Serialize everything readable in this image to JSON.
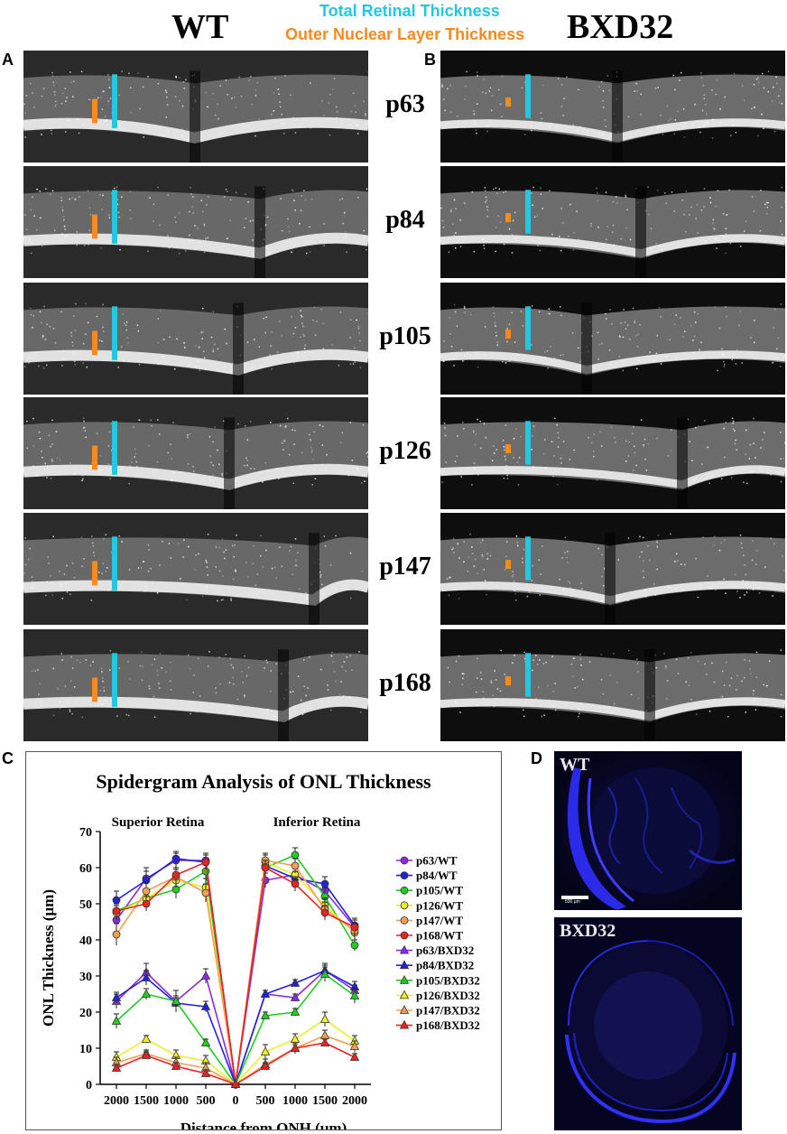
{
  "header": {
    "wt_title": "WT",
    "bxd_title": "BXD32",
    "legend_total": "Total Retinal Thickness",
    "legend_onl": "Outer Nuclear Layer Thickness",
    "total_color": "#22c8e0",
    "onl_color": "#f58a1f"
  },
  "panels": {
    "a": "A",
    "b": "B",
    "c": "C",
    "d": "D"
  },
  "ages": [
    "p63",
    "p84",
    "p105",
    "p126",
    "p147",
    "p168"
  ],
  "ihc": {
    "wt_label": "WT",
    "bxd_label": "BXD32",
    "scale_bar": "500 μm"
  },
  "chart_data": {
    "type": "line",
    "title": "Spidergram Analysis of ONL Thickness",
    "xlabel": "Distance from ONH (μm)",
    "ylabel": "ONL Thickness (μm)",
    "region_left": "Superior Retina",
    "region_right": "Inferior Retina",
    "x": [
      "2000",
      "1500",
      "1000",
      "500",
      "0",
      "500",
      "1000",
      "1500",
      "2000"
    ],
    "ylim": [
      0,
      70
    ],
    "yticks": [
      0,
      10,
      20,
      30,
      40,
      50,
      60,
      70
    ],
    "legend_position": "right",
    "series": [
      {
        "name": "p63/WT",
        "marker": "circle",
        "color": "#8a2be2",
        "values": [
          45.5,
          57,
          62,
          62,
          0,
          56.5,
          58,
          53.5,
          43.5
        ],
        "err": [
          2.5,
          3,
          2,
          2,
          0,
          2,
          2,
          2.5,
          2
        ]
      },
      {
        "name": "p84/WT",
        "marker": "circle",
        "color": "#2222dd",
        "values": [
          51,
          56.5,
          62.5,
          61.5,
          0,
          60.5,
          57,
          55.5,
          44
        ],
        "err": [
          2.5,
          2.5,
          2,
          2,
          0,
          2,
          2,
          2,
          2
        ]
      },
      {
        "name": "p105/WT",
        "marker": "circle",
        "color": "#22cc22",
        "values": [
          48,
          51.5,
          54,
          59,
          0,
          60,
          63.5,
          52,
          38.5
        ],
        "err": [
          2,
          2.5,
          2.5,
          2.5,
          0,
          2,
          2,
          2.5,
          1.5
        ]
      },
      {
        "name": "p126/WT",
        "marker": "circle",
        "color": "#eeee22",
        "values": [
          47.5,
          51.5,
          56.5,
          54.5,
          0,
          61.5,
          58,
          49.5,
          42
        ],
        "err": [
          2,
          2.5,
          2,
          2.5,
          0,
          2,
          2,
          2,
          2
        ]
      },
      {
        "name": "p147/WT",
        "marker": "circle",
        "color": "#f0a050",
        "values": [
          41.5,
          53.5,
          57.5,
          53,
          0,
          62,
          60.5,
          48.5,
          42.5
        ],
        "err": [
          3,
          2.5,
          2,
          2.5,
          0,
          2,
          2,
          2,
          2
        ]
      },
      {
        "name": "p168/WT",
        "marker": "circle",
        "color": "#ee2222",
        "values": [
          48,
          50,
          58,
          61.5,
          0,
          60,
          55.5,
          47.5,
          43.5
        ],
        "err": [
          2,
          2,
          2,
          2,
          0,
          2,
          2,
          2,
          2
        ]
      },
      {
        "name": "p63/BXD32",
        "marker": "triangle",
        "color": "#8a2be2",
        "values": [
          23,
          31,
          23,
          30,
          0,
          25,
          24,
          31.5,
          26
        ],
        "err": [
          2,
          2.5,
          3,
          2,
          0,
          1,
          1,
          2,
          1.5
        ]
      },
      {
        "name": "p84/BXD32",
        "marker": "triangle",
        "color": "#2222dd",
        "values": [
          24,
          29.5,
          22.5,
          21.5,
          0,
          25,
          28,
          31.5,
          27
        ],
        "err": [
          1.5,
          2,
          1.5,
          1.5,
          0,
          1,
          1,
          1.5,
          1.5
        ]
      },
      {
        "name": "p105/BXD32",
        "marker": "triangle",
        "color": "#22cc22",
        "values": [
          17.5,
          25,
          23,
          11.5,
          0,
          19,
          20,
          30.5,
          24.5
        ],
        "err": [
          2,
          1.5,
          1.5,
          1,
          0,
          1,
          1,
          2,
          2
        ]
      },
      {
        "name": "p126/BXD32",
        "marker": "triangle",
        "color": "#eeee22",
        "values": [
          7.5,
          12.5,
          8,
          6.5,
          0,
          9,
          12.5,
          18,
          12
        ],
        "err": [
          1.5,
          1,
          1.5,
          1.5,
          0,
          2,
          1.5,
          2,
          1.5
        ]
      },
      {
        "name": "p147/BXD32",
        "marker": "triangle",
        "color": "#f0a050",
        "values": [
          6,
          8.5,
          6,
          4.5,
          0,
          5.5,
          10,
          13.5,
          10.5
        ],
        "err": [
          1.5,
          1,
          1.5,
          1.5,
          0,
          1.5,
          1.5,
          1.5,
          1.5
        ]
      },
      {
        "name": "p168/BXD32",
        "marker": "triangle",
        "color": "#ee2222",
        "values": [
          4.5,
          8,
          5,
          3,
          0,
          5,
          10,
          11.5,
          7.5
        ],
        "err": [
          1,
          1,
          1,
          1,
          0,
          1,
          1,
          1,
          1
        ]
      }
    ]
  }
}
